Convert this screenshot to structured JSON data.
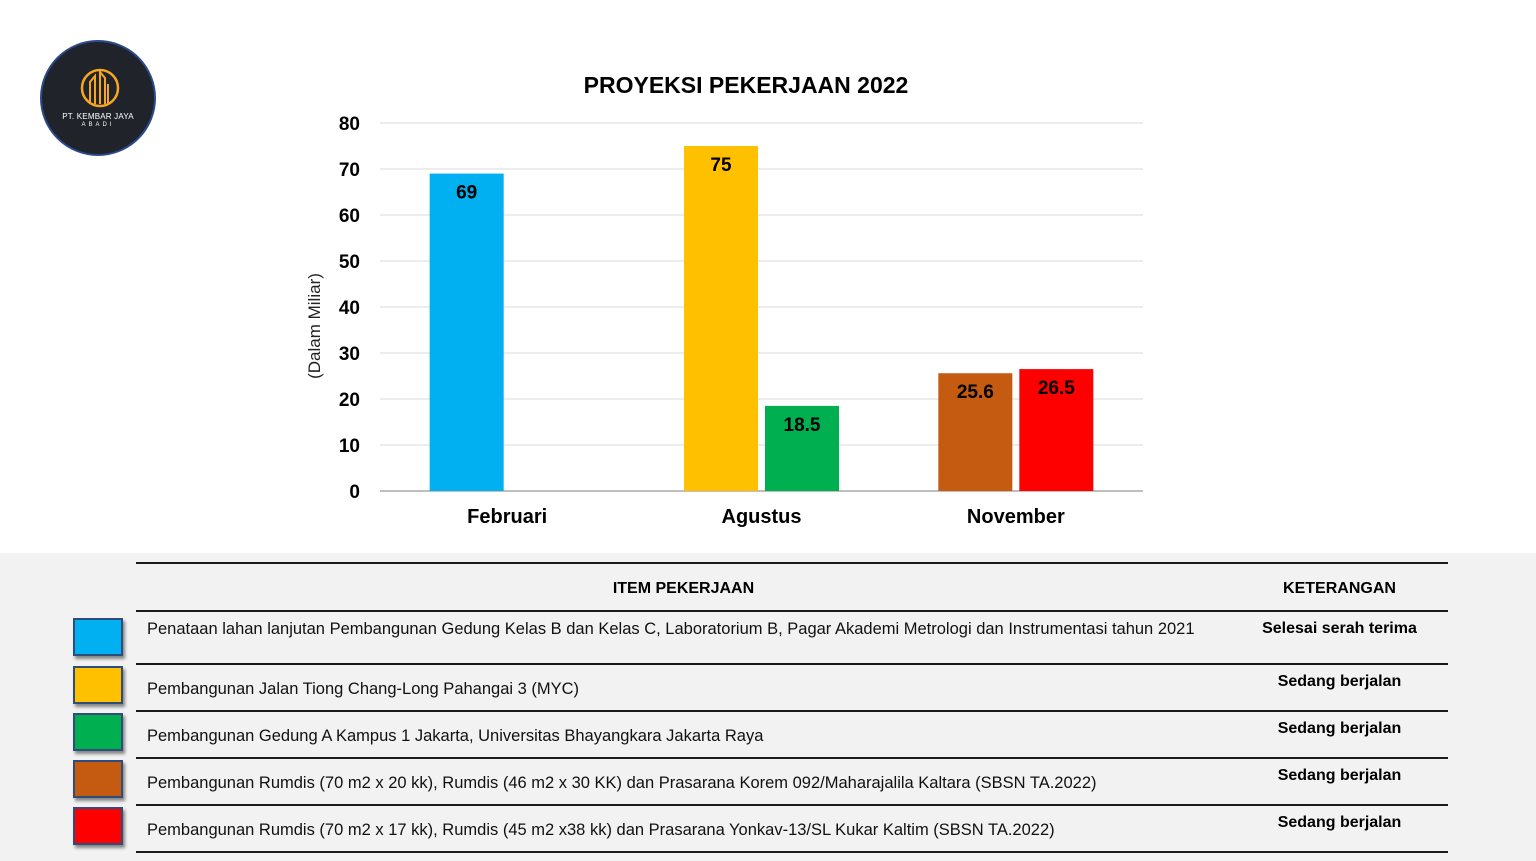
{
  "logo": {
    "name": "PT. KEMBAR JAYA",
    "sub": "ABADI",
    "colors": {
      "background": "#20232a",
      "accent": "#f5a623"
    }
  },
  "chart_data": {
    "type": "bar",
    "title": "PROYEKSI PEKERJAAN 2022",
    "ylabel": "(Dalam Miliar)",
    "xlabel": "",
    "ylim": [
      0,
      80
    ],
    "yticks": [
      0,
      10,
      20,
      30,
      40,
      50,
      60,
      70,
      80
    ],
    "grid": true,
    "categories": [
      "Februari",
      "Agustus",
      "November"
    ],
    "groups": [
      {
        "category": "Februari",
        "bars": [
          {
            "value": 69,
            "label": "69",
            "color": "#00b0f0"
          }
        ]
      },
      {
        "category": "Agustus",
        "bars": [
          {
            "value": 75,
            "label": "75",
            "color": "#ffc000"
          },
          {
            "value": 18.5,
            "label": "18.5",
            "color": "#00b050"
          }
        ]
      },
      {
        "category": "November",
        "bars": [
          {
            "value": 25.6,
            "label": "25.6",
            "color": "#c55a11"
          },
          {
            "value": 26.5,
            "label": "26.5",
            "color": "#ff0000"
          }
        ]
      }
    ]
  },
  "table": {
    "header_item": "ITEM PEKERJAAN",
    "header_ket": "KETERANGAN",
    "rows": [
      {
        "color": "#00b0f0",
        "item": "Penataan lahan lanjutan Pembangunan Gedung Kelas B dan Kelas C, Laboratorium B, Pagar Akademi Metrologi dan Instrumentasi tahun 2021",
        "ket": "Selesai serah terima"
      },
      {
        "color": "#ffc000",
        "item": "Pembangunan Jalan Tiong Chang-Long Pahangai 3 (MYC)",
        "ket": "Sedang berjalan"
      },
      {
        "color": "#00b050",
        "item": "Pembangunan Gedung A Kampus 1 Jakarta, Universitas Bhayangkara Jakarta Raya",
        "ket": "Sedang berjalan"
      },
      {
        "color": "#c55a11",
        "item": "Pembangunan Rumdis (70 m2 x 20 kk), Rumdis (46 m2 x 30 KK) dan Prasarana Korem 092/Maharajalila Kaltara (SBSN TA.2022)",
        "ket": "Sedang berjalan"
      },
      {
        "color": "#ff0000",
        "item": "Pembangunan Rumdis (70 m2 x 17 kk), Rumdis (45 m2 x38 kk) dan Prasarana Yonkav-13/SL Kukar Kaltim (SBSN TA.2022)",
        "ket": "Sedang berjalan"
      }
    ]
  }
}
